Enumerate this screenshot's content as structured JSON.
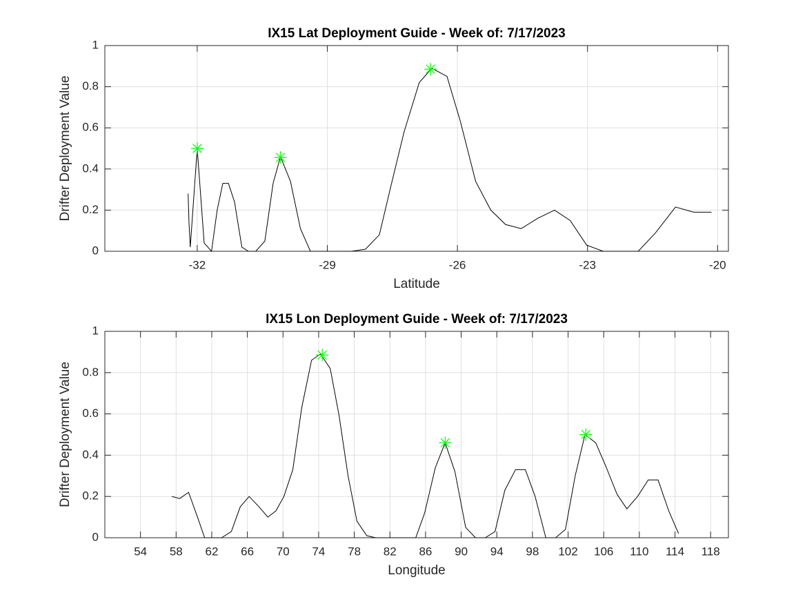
{
  "chart_data": [
    {
      "type": "line",
      "title": "IX15 Lat Deployment Guide - Week of: 7/17/2023",
      "x_label": "Latitude",
      "y_label": "Drifter Deployment Value",
      "xlim": [
        -34.13,
        -19.75
      ],
      "ylim": [
        0,
        1
      ],
      "xticks": [
        -32,
        -29,
        -26,
        -23,
        -20
      ],
      "yticks": [
        0,
        0.2,
        0.4,
        0.6,
        0.8,
        1
      ],
      "grid": true,
      "series": [
        {
          "color": "#000000",
          "marker": "none",
          "x": [
            -32.21,
            -32.19,
            -32.16,
            -32,
            -31.84,
            -31.67,
            -31.54,
            -31.41,
            -31.28,
            -31.14,
            -30.97,
            -30.82,
            -30.65,
            -30.44,
            -30.25,
            -30.08,
            -29.85,
            -29.62,
            -29.39,
            -29.06,
            -28.76,
            -28.44,
            -28.12,
            -27.8,
            -27.53,
            -27.23,
            -26.88,
            -26.59,
            -26.24,
            -25.93,
            -25.58,
            -25.23,
            -24.89,
            -24.53,
            -24.15,
            -23.76,
            -23.4,
            -23.02,
            -22.64,
            -22.24,
            -21.83,
            -21.43,
            -20.97,
            -20.55,
            -20.14
          ],
          "values": [
            0.28,
            0.14,
            0.02,
            0.5,
            0.04,
            0,
            0.2,
            0.33,
            0.33,
            0.24,
            0.02,
            0,
            0,
            0.05,
            0.33,
            0.46,
            0.34,
            0.11,
            0,
            0,
            0,
            0,
            0.01,
            0.08,
            0.32,
            0.58,
            0.82,
            0.89,
            0.85,
            0.63,
            0.34,
            0.2,
            0.13,
            0.11,
            0.16,
            0.2,
            0.15,
            0.03,
            0,
            0,
            0,
            0.09,
            0.215,
            0.19,
            0.19
          ]
        },
        {
          "color": "#00ff00",
          "marker": "asterisk",
          "x": [
            -32,
            -30.08,
            -26.62
          ],
          "values": [
            0.5,
            0.456,
            0.885
          ]
        }
      ]
    },
    {
      "type": "line",
      "title": "IX15 Lon Deployment Guide - Week of: 7/17/2023",
      "x_label": "Longitude",
      "y_label": "Drifter Deployment Value",
      "xlim": [
        50,
        120
      ],
      "ylim": [
        0,
        1
      ],
      "xticks": [
        54,
        58,
        62,
        66,
        70,
        74,
        78,
        82,
        86,
        90,
        94,
        98,
        102,
        106,
        110,
        114,
        118
      ],
      "yticks": [
        0,
        0.2,
        0.4,
        0.6,
        0.8,
        1
      ],
      "grid": true,
      "series": [
        {
          "color": "#000000",
          "marker": "none",
          "x": [
            57.5,
            58.4,
            59.4,
            60.4,
            61.2,
            62.1,
            63.1,
            64.2,
            65.2,
            66.2,
            67.3,
            68.3,
            69.2,
            70.1,
            71.1,
            72.1,
            73.2,
            74.2,
            75.3,
            76.3,
            77.3,
            78.3,
            79.4,
            80.4,
            81.5,
            82.7,
            83.8,
            84.9,
            85.9,
            87.1,
            88.2,
            89.3,
            90.5,
            91.6,
            92.7,
            93.8,
            94.9,
            96.1,
            97.2,
            98.3,
            99.5,
            100.6,
            101.7,
            102.8,
            103.9,
            105.1,
            106.2,
            107.5,
            108.6,
            109.8,
            111,
            112.1,
            113.3,
            114.4
          ],
          "values": [
            0.2,
            0.19,
            0.22,
            0.1,
            0,
            0,
            0,
            0.03,
            0.15,
            0.2,
            0.15,
            0.1,
            0.13,
            0.2,
            0.33,
            0.63,
            0.86,
            0.89,
            0.82,
            0.59,
            0.3,
            0.08,
            0.01,
            0,
            0,
            0,
            0,
            0,
            0.12,
            0.34,
            0.46,
            0.32,
            0.05,
            0,
            0,
            0.03,
            0.23,
            0.33,
            0.33,
            0.2,
            0,
            0,
            0.04,
            0.3,
            0.5,
            0.46,
            0.35,
            0.21,
            0.14,
            0.2,
            0.28,
            0.28,
            0.13,
            0.02
          ]
        },
        {
          "color": "#00ff00",
          "marker": "asterisk",
          "x": [
            74.4,
            88.2,
            104
          ],
          "values": [
            0.885,
            0.46,
            0.5
          ]
        }
      ]
    }
  ]
}
